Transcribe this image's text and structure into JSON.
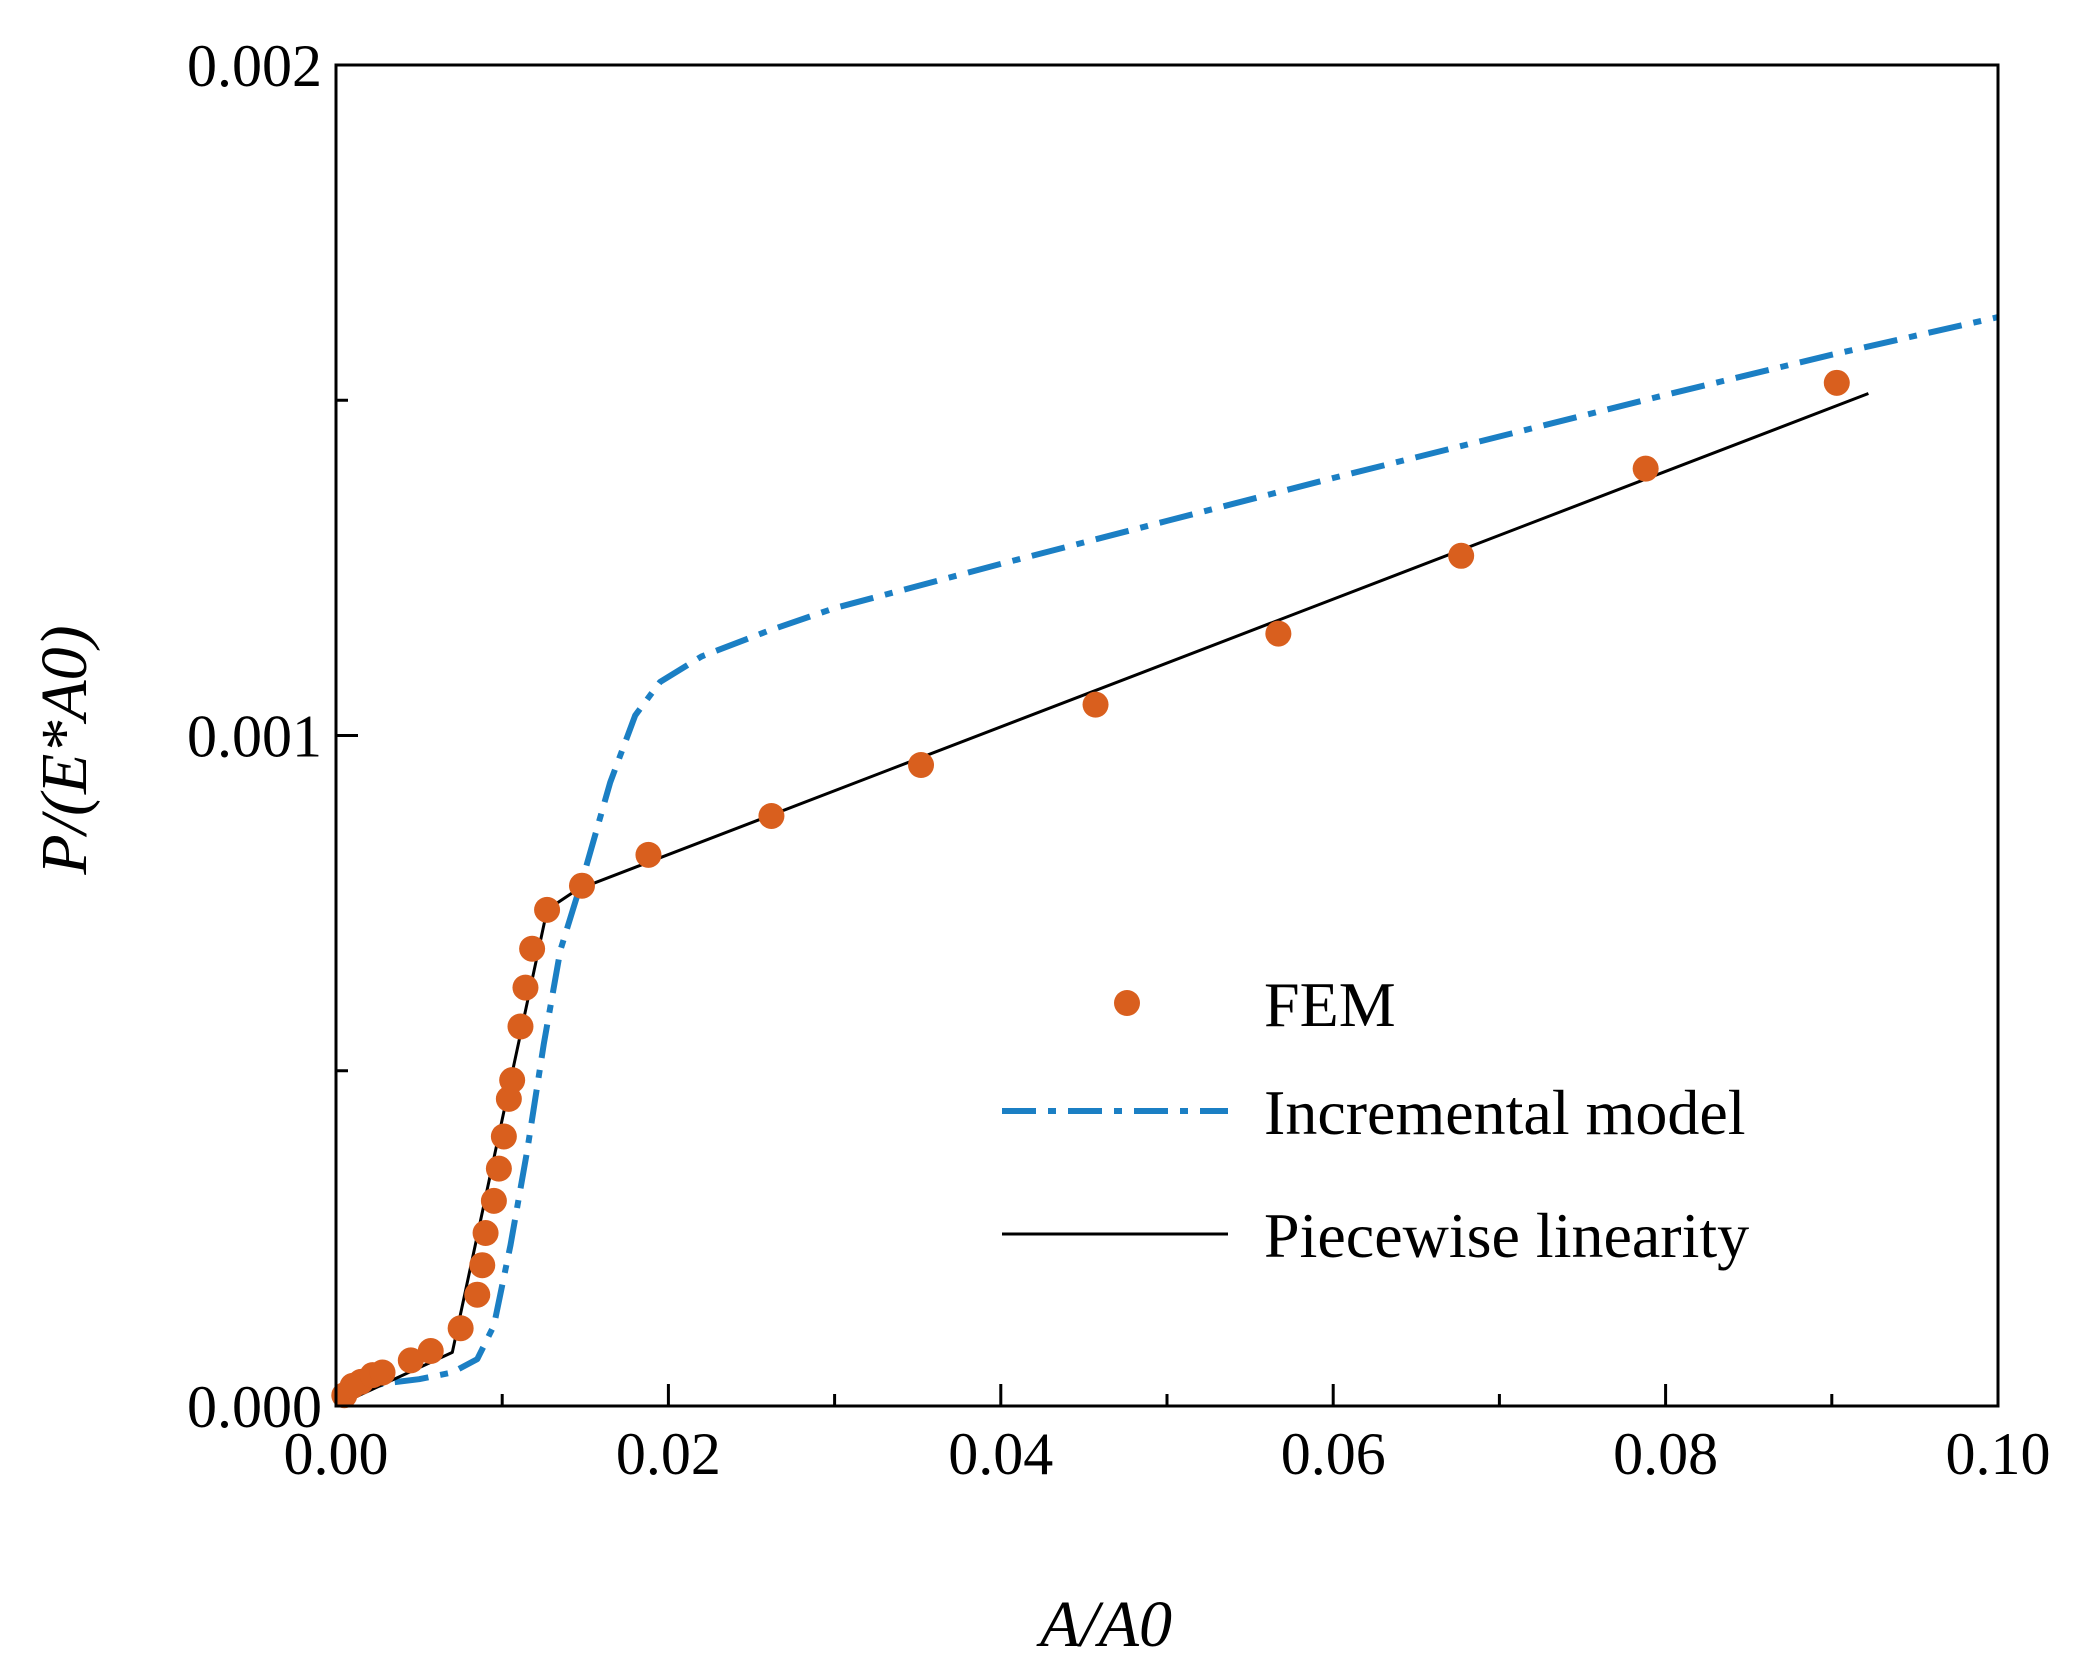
{
  "chart_data": {
    "type": "line",
    "title": "",
    "xlabel": "A/A0",
    "ylabel": "P/(E*A0)",
    "xlim": [
      0.0,
      0.1
    ],
    "ylim": [
      0.0,
      0.002
    ],
    "grid": false,
    "legend_position": "bottom-right",
    "x_ticks": [
      {
        "value": 0.0,
        "label": "0.00"
      },
      {
        "value": 0.02,
        "label": "0.02"
      },
      {
        "value": 0.04,
        "label": "0.04"
      },
      {
        "value": 0.06,
        "label": "0.06"
      },
      {
        "value": 0.08,
        "label": "0.08"
      },
      {
        "value": 0.1,
        "label": "0.10"
      }
    ],
    "y_ticks": [
      {
        "value": 0.0,
        "label": "0.000"
      },
      {
        "value": 0.001,
        "label": "0.001"
      },
      {
        "value": 0.002,
        "label": "0.002"
      }
    ],
    "series": [
      {
        "name": "FEM",
        "style": "markers",
        "color": "#d95f1e",
        "points": [
          {
            "x": 0.0005,
            "y": 1.6e-05
          },
          {
            "x": 0.001,
            "y": 3e-05
          },
          {
            "x": 0.0015,
            "y": 3.6e-05
          },
          {
            "x": 0.0022,
            "y": 4.6e-05
          },
          {
            "x": 0.0028,
            "y": 5e-05
          },
          {
            "x": 0.0045,
            "y": 6.8e-05
          },
          {
            "x": 0.0057,
            "y": 8.2e-05
          },
          {
            "x": 0.0075,
            "y": 0.000116
          },
          {
            "x": 0.0085,
            "y": 0.000166
          },
          {
            "x": 0.0088,
            "y": 0.00021
          },
          {
            "x": 0.009,
            "y": 0.000258
          },
          {
            "x": 0.0095,
            "y": 0.000306
          },
          {
            "x": 0.0098,
            "y": 0.000354
          },
          {
            "x": 0.0101,
            "y": 0.000402
          },
          {
            "x": 0.0104,
            "y": 0.000458
          },
          {
            "x": 0.0106,
            "y": 0.000486
          },
          {
            "x": 0.0111,
            "y": 0.000566
          },
          {
            "x": 0.0114,
            "y": 0.000624
          },
          {
            "x": 0.0118,
            "y": 0.000682
          },
          {
            "x": 0.0127,
            "y": 0.00074
          },
          {
            "x": 0.0148,
            "y": 0.000776
          },
          {
            "x": 0.0188,
            "y": 0.000822
          },
          {
            "x": 0.0262,
            "y": 0.00088
          },
          {
            "x": 0.0352,
            "y": 0.000956
          },
          {
            "x": 0.0457,
            "y": 0.001046
          },
          {
            "x": 0.0567,
            "y": 0.001152
          },
          {
            "x": 0.0677,
            "y": 0.001268
          },
          {
            "x": 0.0788,
            "y": 0.001398
          },
          {
            "x": 0.0903,
            "y": 0.001526
          }
        ]
      },
      {
        "name": "Incremental model",
        "style": "dash-dot",
        "color": "#1b7fc4",
        "points": [
          {
            "x": 0.0,
            "y": 0.0
          },
          {
            "x": 0.001,
            "y": 2.4e-05
          },
          {
            "x": 0.003,
            "y": 3.4e-05
          },
          {
            "x": 0.005,
            "y": 4e-05
          },
          {
            "x": 0.007,
            "y": 5e-05
          },
          {
            "x": 0.0085,
            "y": 7e-05
          },
          {
            "x": 0.0095,
            "y": 0.00012
          },
          {
            "x": 0.0105,
            "y": 0.00024
          },
          {
            "x": 0.0115,
            "y": 0.00038
          },
          {
            "x": 0.0125,
            "y": 0.00054
          },
          {
            "x": 0.0135,
            "y": 0.00068
          },
          {
            "x": 0.015,
            "y": 0.0008
          },
          {
            "x": 0.0165,
            "y": 0.00093
          },
          {
            "x": 0.018,
            "y": 0.00103
          },
          {
            "x": 0.0195,
            "y": 0.00108
          },
          {
            "x": 0.022,
            "y": 0.001118
          },
          {
            "x": 0.026,
            "y": 0.001156
          },
          {
            "x": 0.03,
            "y": 0.00119
          },
          {
            "x": 0.04,
            "y": 0.001256
          },
          {
            "x": 0.05,
            "y": 0.00132
          },
          {
            "x": 0.06,
            "y": 0.001384
          },
          {
            "x": 0.07,
            "y": 0.001446
          },
          {
            "x": 0.08,
            "y": 0.001508
          },
          {
            "x": 0.09,
            "y": 0.001568
          },
          {
            "x": 0.1,
            "y": 0.001624
          }
        ]
      },
      {
        "name": "Piecewise linearity",
        "style": "solid",
        "color": "#000000",
        "points": [
          {
            "x": 0.0,
            "y": 0.0
          },
          {
            "x": 0.007,
            "y": 8e-05
          },
          {
            "x": 0.0127,
            "y": 0.00074
          },
          {
            "x": 0.0145,
            "y": 0.00077
          },
          {
            "x": 0.0922,
            "y": 0.00151
          }
        ]
      }
    ]
  }
}
